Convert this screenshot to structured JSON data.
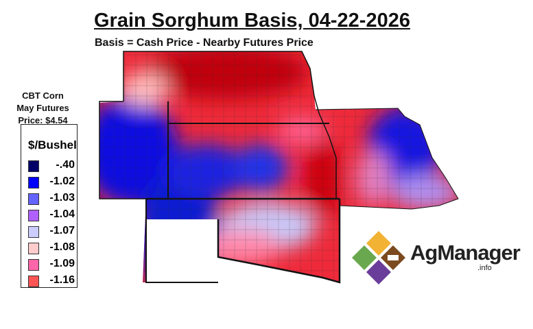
{
  "title": "Grain Sorghum Basis, 04-22-2026",
  "subtitle": "Basis = Cash Price - Nearby Futures Price",
  "futures": {
    "line1": "CBT Corn",
    "line2": "May Futures",
    "line3": "Price: $4.54"
  },
  "legend": {
    "title": "$/Bushel",
    "items": [
      {
        "label": "-.40",
        "color": "#000066"
      },
      {
        "label": "-1.02",
        "color": "#0000ff"
      },
      {
        "label": "-1.03",
        "color": "#6464ff"
      },
      {
        "label": "-1.04",
        "color": "#b060ff"
      },
      {
        "label": "-1.07",
        "color": "#ccccff"
      },
      {
        "label": "-1.08",
        "color": "#ffcccc"
      },
      {
        "label": "-1.09",
        "color": "#ff66aa"
      },
      {
        "label": "-1.16",
        "color": "#ff5555"
      }
    ]
  },
  "logo": {
    "name": "AgManager",
    "suffix": ".info",
    "colors": [
      "#f2b233",
      "#6aa84f",
      "#7b4a1e",
      "#6a3d9a"
    ]
  }
}
